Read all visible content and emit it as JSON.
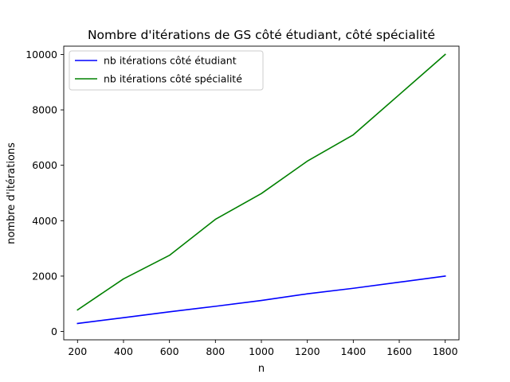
{
  "chart_data": {
    "type": "line",
    "title": "Nombre d'itérations de GS côté étudiant, côté spécialité",
    "xlabel": "n",
    "ylabel": "nombre d'itérations",
    "x": [
      200,
      400,
      600,
      800,
      1000,
      1200,
      1400,
      1600,
      1800
    ],
    "xlim": [
      140,
      1860
    ],
    "ylim": [
      -300,
      10300
    ],
    "xticks": [
      "200",
      "400",
      "600",
      "800",
      "1000",
      "1200",
      "1400",
      "1600",
      "1800"
    ],
    "xtick_values": [
      200,
      400,
      600,
      800,
      1000,
      1200,
      1400,
      1600,
      1800
    ],
    "yticks": [
      "0",
      "2000",
      "4000",
      "6000",
      "8000",
      "10000"
    ],
    "ytick_values": [
      0,
      2000,
      4000,
      6000,
      8000,
      10000
    ],
    "grid": false,
    "legend_position": "top-left",
    "series": [
      {
        "name": "nb itérations côté étudiant",
        "color": "#0000ff",
        "values": [
          290,
          500,
          710,
          910,
          1120,
          1360,
          1560,
          1780,
          2000
        ]
      },
      {
        "name": "nb itérations côté spécialité",
        "color": "#008000",
        "values": [
          780,
          1900,
          2750,
          4050,
          4980,
          6150,
          7100,
          8550,
          10000
        ]
      }
    ]
  }
}
